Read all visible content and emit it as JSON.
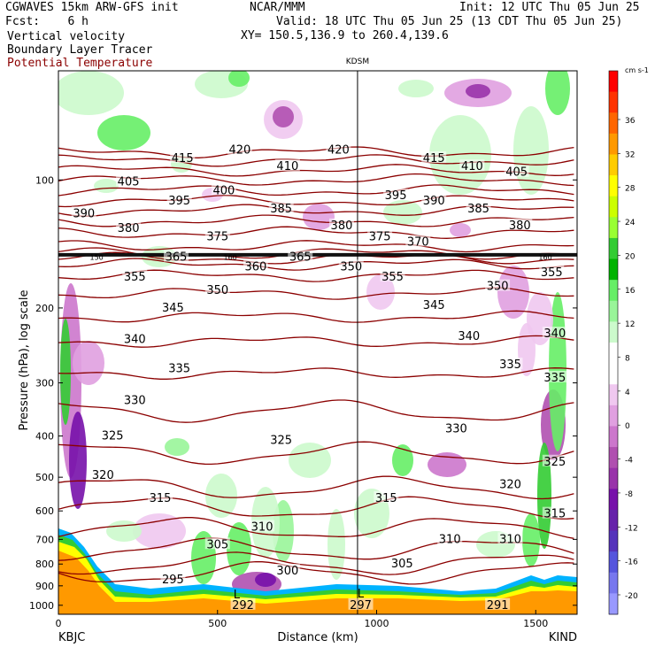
{
  "header": {
    "model": "CGWAVES 15km ARW-GFS init",
    "forecast": "Fcst:    6 h",
    "org": "NCAR/MMM",
    "init": "Init: 12 UTC Thu 05 Jun 25",
    "valid": "Valid: 18 UTC Thu 05 Jun 25 (13 CDT Thu 05 Jun 25)",
    "xy": "XY= 150.5,136.9 to 260.4,139.6",
    "fields": [
      "Vertical velocity",
      "Boundary Layer Tracer",
      "Potential Temperature"
    ],
    "field_colors": [
      "#000000",
      "#000000",
      "#8b0000"
    ],
    "station_top": "KDSM"
  },
  "chart_data": {
    "type": "heatmap",
    "ylabel": "Pressure (hPa), log scale",
    "xlabel": "Distance (km)",
    "x_ticks": [
      0,
      500,
      1000,
      1500
    ],
    "y_ticks": [
      100,
      200,
      300,
      400,
      500,
      600,
      700,
      800,
      900,
      1000
    ],
    "xlim": [
      0,
      1630
    ],
    "endpoints": {
      "left": "KBJC",
      "right": "KIND"
    },
    "colorbar": {
      "unit": "cm s-1",
      "ticks": [
        36,
        32,
        28,
        24,
        20,
        16,
        12,
        8,
        4,
        0,
        -4,
        -8,
        -12,
        -16,
        -20
      ],
      "colors": [
        "#ff0000",
        "#ff3300",
        "#ff6600",
        "#ff9900",
        "#ffcc00",
        "#ffff00",
        "#ccff00",
        "#99ff33",
        "#33cc33",
        "#00b300",
        "#66ee66",
        "#99f599",
        "#ccfacc",
        "#ffffff",
        "#ffffff",
        "#f0c8f0",
        "#e0a0e0",
        "#cc77cc",
        "#b050b0",
        "#9933aa",
        "#7711aa",
        "#6622aa",
        "#5533bb",
        "#5555dd",
        "#7777ee",
        "#9999ff"
      ]
    },
    "theta_contours": [
      {
        "value": 295,
        "p": 840
      },
      {
        "value": 300,
        "p": 800
      },
      {
        "value": 305,
        "p": 740
      },
      {
        "value": 310,
        "p": 660
      },
      {
        "value": 315,
        "p": 590
      },
      {
        "value": 320,
        "p": 530
      },
      {
        "value": 325,
        "p": 440
      },
      {
        "value": 330,
        "p": 350
      },
      {
        "value": 335,
        "p": 285
      },
      {
        "value": 340,
        "p": 240
      },
      {
        "value": 345,
        "p": 210
      },
      {
        "value": 350,
        "p": 185
      },
      {
        "value": 355,
        "p": 168
      },
      {
        "value": 360,
        "p": 158
      },
      {
        "value": 365,
        "p": 153
      },
      {
        "value": 370,
        "p": 149
      },
      {
        "value": 375,
        "p": 143
      },
      {
        "value": 380,
        "p": 133
      },
      {
        "value": 385,
        "p": 125
      },
      {
        "value": 390,
        "p": 118
      },
      {
        "value": 395,
        "p": 112
      },
      {
        "value": 400,
        "p": 106
      },
      {
        "value": 405,
        "p": 100
      },
      {
        "value": 410,
        "p": 95
      },
      {
        "value": 415,
        "p": 90
      },
      {
        "value": 420,
        "p": 86
      }
    ],
    "contour_labels": [
      {
        "text": "415",
        "x": 390,
        "p": 89
      },
      {
        "text": "420",
        "x": 570,
        "p": 85
      },
      {
        "text": "410",
        "x": 720,
        "p": 93
      },
      {
        "text": "420",
        "x": 880,
        "p": 85
      },
      {
        "text": "415",
        "x": 1180,
        "p": 89
      },
      {
        "text": "410",
        "x": 1300,
        "p": 93
      },
      {
        "text": "405",
        "x": 1440,
        "p": 96
      },
      {
        "text": "390",
        "x": 80,
        "p": 120
      },
      {
        "text": "405",
        "x": 220,
        "p": 101
      },
      {
        "text": "395",
        "x": 380,
        "p": 112
      },
      {
        "text": "400",
        "x": 520,
        "p": 106
      },
      {
        "text": "385",
        "x": 700,
        "p": 117
      },
      {
        "text": "395",
        "x": 1060,
        "p": 109
      },
      {
        "text": "390",
        "x": 1180,
        "p": 112
      },
      {
        "text": "385",
        "x": 1320,
        "p": 117
      },
      {
        "text": "380",
        "x": 220,
        "p": 130
      },
      {
        "text": "375",
        "x": 500,
        "p": 136
      },
      {
        "text": "380",
        "x": 890,
        "p": 128
      },
      {
        "text": "375",
        "x": 1010,
        "p": 136
      },
      {
        "text": "370",
        "x": 1130,
        "p": 140
      },
      {
        "text": "380",
        "x": 1450,
        "p": 128
      },
      {
        "text": "365",
        "x": 370,
        "p": 152
      },
      {
        "text": "365",
        "x": 760,
        "p": 152
      },
      {
        "text": "360",
        "x": 620,
        "p": 160
      },
      {
        "text": "350",
        "x": 920,
        "p": 160
      },
      {
        "text": "355",
        "x": 240,
        "p": 169
      },
      {
        "text": "355",
        "x": 1050,
        "p": 169
      },
      {
        "text": "350",
        "x": 500,
        "p": 182
      },
      {
        "text": "350",
        "x": 1380,
        "p": 178
      },
      {
        "text": "355",
        "x": 1550,
        "p": 165
      },
      {
        "text": "345",
        "x": 360,
        "p": 200
      },
      {
        "text": "345",
        "x": 1180,
        "p": 197
      },
      {
        "text": "340",
        "x": 240,
        "p": 237
      },
      {
        "text": "340",
        "x": 1290,
        "p": 233
      },
      {
        "text": "340",
        "x": 1560,
        "p": 230
      },
      {
        "text": "335",
        "x": 380,
        "p": 278
      },
      {
        "text": "335",
        "x": 1420,
        "p": 272
      },
      {
        "text": "335",
        "x": 1560,
        "p": 292
      },
      {
        "text": "330",
        "x": 240,
        "p": 330
      },
      {
        "text": "330",
        "x": 1250,
        "p": 385
      },
      {
        "text": "325",
        "x": 170,
        "p": 400
      },
      {
        "text": "325",
        "x": 700,
        "p": 410
      },
      {
        "text": "325",
        "x": 1560,
        "p": 460
      },
      {
        "text": "320",
        "x": 140,
        "p": 495
      },
      {
        "text": "320",
        "x": 1420,
        "p": 520
      },
      {
        "text": "315",
        "x": 320,
        "p": 560
      },
      {
        "text": "315",
        "x": 1030,
        "p": 560
      },
      {
        "text": "315",
        "x": 1560,
        "p": 610
      },
      {
        "text": "310",
        "x": 640,
        "p": 655
      },
      {
        "text": "310",
        "x": 1230,
        "p": 700
      },
      {
        "text": "310",
        "x": 1420,
        "p": 700
      },
      {
        "text": "305",
        "x": 500,
        "p": 720
      },
      {
        "text": "305",
        "x": 1080,
        "p": 800
      },
      {
        "text": "300",
        "x": 720,
        "p": 830
      },
      {
        "text": "295",
        "x": 360,
        "p": 870
      },
      {
        "text": "292",
        "x": 580,
        "p": 1000
      },
      {
        "text": "297",
        "x": 950,
        "p": 1000
      },
      {
        "text": "291",
        "x": 1380,
        "p": 1000
      }
    ],
    "small_labels": [
      {
        "text": "150",
        "x": 120,
        "p": 152
      },
      {
        "text": "160",
        "x": 540,
        "p": 152
      },
      {
        "text": "160",
        "x": 1530,
        "p": 152
      }
    ],
    "lows": [
      {
        "text": "L",
        "x": 560,
        "p": 940
      },
      {
        "text": "L",
        "x": 950,
        "p": 935
      }
    ],
    "station_vline_x": 940
  }
}
